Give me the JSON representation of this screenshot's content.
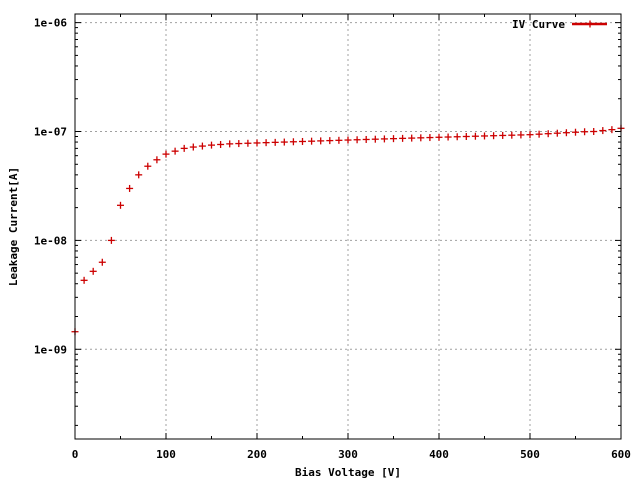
{
  "chart_data": {
    "type": "scatter",
    "xlabel": "Bias Voltage [V]",
    "ylabel": "Leakage Current[A]",
    "xlim": [
      0,
      600
    ],
    "ylim": [
      1.5e-10,
      1.2e-06
    ],
    "y_scale": "log",
    "grid": true,
    "legend_position": "top-right",
    "x_ticks": [
      0,
      100,
      200,
      300,
      400,
      500,
      600
    ],
    "x_tick_labels": [
      "0",
      "100",
      "200",
      "300",
      "400",
      "500",
      "600"
    ],
    "y_ticks": [
      1e-09,
      1e-08,
      1e-07,
      1e-06
    ],
    "y_tick_labels": [
      "1e-09",
      "1e-08",
      "1e-07",
      "1e-06"
    ],
    "series": [
      {
        "name": "IV Curve",
        "color": "#cc0000",
        "marker": "plus",
        "x": [
          0,
          10,
          20,
          30,
          40,
          50,
          60,
          70,
          80,
          90,
          100,
          110,
          120,
          130,
          140,
          150,
          160,
          170,
          180,
          190,
          200,
          210,
          220,
          230,
          240,
          250,
          260,
          270,
          280,
          290,
          300,
          310,
          320,
          330,
          340,
          350,
          360,
          370,
          380,
          390,
          400,
          410,
          420,
          430,
          440,
          450,
          460,
          470,
          480,
          490,
          500,
          510,
          520,
          530,
          540,
          550,
          560,
          570,
          580,
          590,
          600
        ],
        "y": [
          1.45e-09,
          4.3e-09,
          5.2e-09,
          6.3e-09,
          1e-08,
          2.1e-08,
          3e-08,
          4e-08,
          4.8e-08,
          5.5e-08,
          6.2e-08,
          6.6e-08,
          7e-08,
          7.2e-08,
          7.35e-08,
          7.5e-08,
          7.6e-08,
          7.7e-08,
          7.75e-08,
          7.8e-08,
          7.85e-08,
          7.9e-08,
          7.95e-08,
          8e-08,
          8.05e-08,
          8.1e-08,
          8.15e-08,
          8.2e-08,
          8.25e-08,
          8.3e-08,
          8.35e-08,
          8.4e-08,
          8.45e-08,
          8.5e-08,
          8.55e-08,
          8.6e-08,
          8.65e-08,
          8.7e-08,
          8.75e-08,
          8.8e-08,
          8.85e-08,
          8.9e-08,
          8.95e-08,
          9e-08,
          9.05e-08,
          9.1e-08,
          9.15e-08,
          9.2e-08,
          9.25e-08,
          9.3e-08,
          9.35e-08,
          9.45e-08,
          9.55e-08,
          9.65e-08,
          9.75e-08,
          9.85e-08,
          9.95e-08,
          1e-07,
          1.02e-07,
          1.04e-07,
          1.07e-07
        ]
      }
    ]
  }
}
